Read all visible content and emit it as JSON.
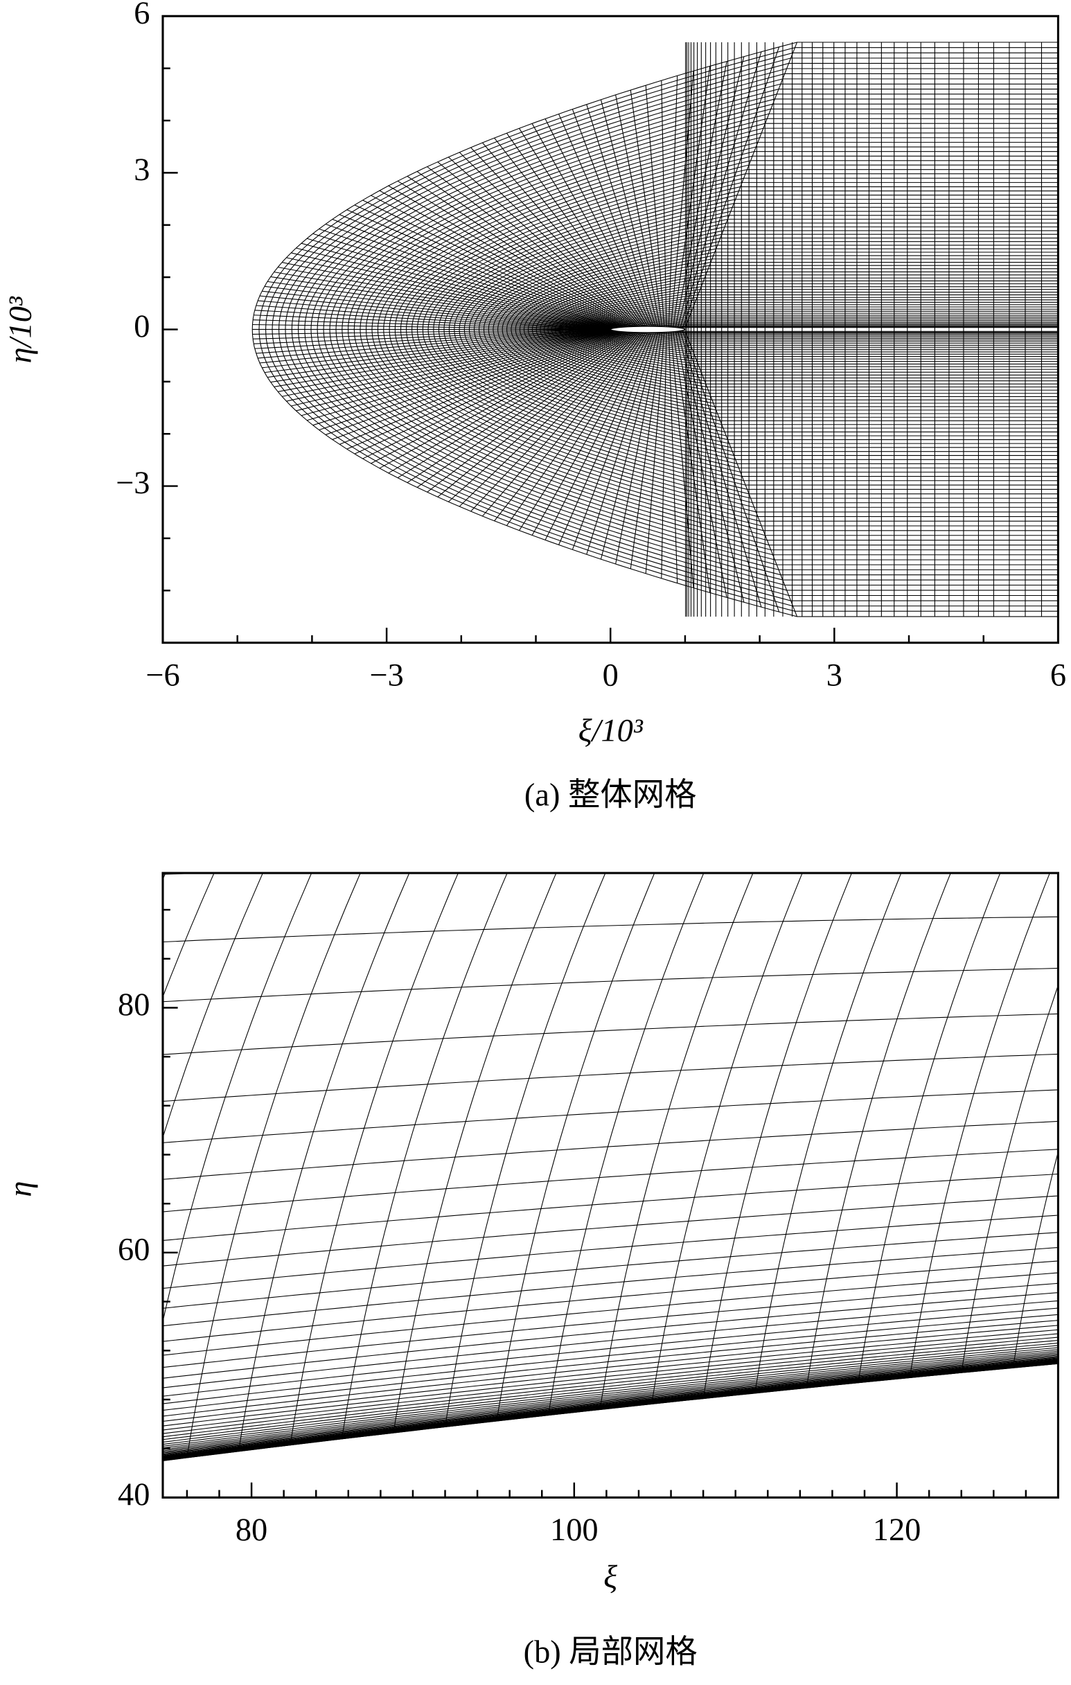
{
  "chart_data": [
    {
      "type": "mesh",
      "xlabel": "ξ/10³",
      "ylabel": "η/10³",
      "caption": "(a) 整体网格",
      "xlim": [
        -6,
        6
      ],
      "ylim": [
        -6,
        6
      ],
      "xticks": [
        {
          "value": -6,
          "label": "−6"
        },
        {
          "value": -3,
          "label": "−3"
        },
        0,
        3,
        6
      ],
      "yticks": [
        {
          "value": -3,
          "label": "−3"
        },
        0,
        3,
        6
      ],
      "xminorticks": [
        -5,
        -4,
        -2,
        -1,
        1,
        2,
        4,
        5
      ],
      "yminorticks": [
        -5,
        -4,
        -2,
        -1,
        1,
        2,
        4,
        5
      ]
    },
    {
      "type": "mesh-local",
      "xlabel": "ξ",
      "ylabel": "η",
      "caption": "(b) 局部网格",
      "xlim": [
        74.5,
        130
      ],
      "ylim": [
        40,
        91
      ],
      "xticks": [
        80,
        100,
        120
      ],
      "yticks": [
        40,
        60,
        80
      ],
      "xminorticks": [
        76,
        78,
        82,
        84,
        86,
        88,
        90,
        92,
        94,
        96,
        98,
        102,
        104,
        106,
        108,
        110,
        112,
        114,
        116,
        118,
        122,
        124,
        126,
        128
      ],
      "yminorticks": [
        44,
        48,
        52,
        56,
        64,
        68,
        72,
        76,
        84,
        88
      ]
    }
  ]
}
